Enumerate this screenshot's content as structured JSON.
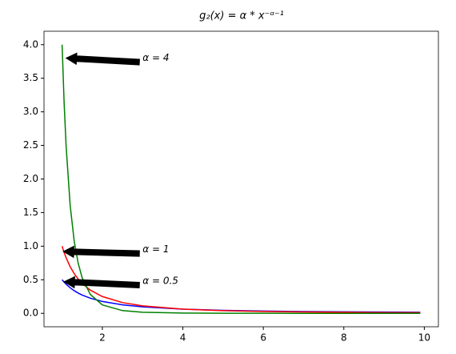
{
  "chart_data": {
    "type": "line",
    "title": "g₂(x) = α * x⁻ᵅ⁻¹",
    "x": [
      1,
      1.05,
      1.1,
      1.2,
      1.3,
      1.4,
      1.5,
      1.7,
      2,
      2.5,
      3,
      4,
      5,
      6,
      7,
      8,
      9,
      9.9
    ],
    "series": [
      {
        "color": "#0000ff",
        "values": [
          0.5,
          0.4647,
          0.4334,
          0.3804,
          0.3373,
          0.3018,
          0.2722,
          0.2256,
          0.1768,
          0.1265,
          0.0962,
          0.0625,
          0.0447,
          0.034,
          0.027,
          0.0221,
          0.0185,
          0.0161
        ]
      },
      {
        "color": "#ff0000",
        "values": [
          1,
          0.907,
          0.8264,
          0.6944,
          0.5917,
          0.5102,
          0.4444,
          0.346,
          0.25,
          0.16,
          0.1111,
          0.0625,
          0.04,
          0.0278,
          0.0204,
          0.0156,
          0.0123,
          0.0102
        ]
      },
      {
        "color": "#008000",
        "values": [
          4,
          3.1341,
          2.4837,
          1.6075,
          1.0773,
          0.7437,
          0.5267,
          0.2817,
          0.125,
          0.041,
          0.0165,
          0.0039,
          0.0013,
          0.0005,
          0.0002,
          0.0001,
          0.0001,
          0
        ]
      }
    ],
    "annotations": [
      {
        "text": "α = 4",
        "xy": [
          1.1,
          3.8
        ],
        "xytext": [
          3,
          3.8
        ]
      },
      {
        "text": "α = 1",
        "xy": [
          1.03,
          0.92
        ],
        "xytext": [
          3,
          0.95
        ]
      },
      {
        "text": "α = 0.5",
        "xy": [
          1.05,
          0.47
        ],
        "xytext": [
          3,
          0.48
        ]
      }
    ],
    "xlim": [
      0.55,
      10.35
    ],
    "ylim": [
      -0.2,
      4.2
    ],
    "xticks": [
      2,
      4,
      6,
      8,
      10
    ],
    "yticks": [
      {
        "value": 0,
        "label": "0.0"
      },
      {
        "value": 0.5,
        "label": "0.5"
      },
      {
        "value": 1,
        "label": "1.0"
      },
      {
        "value": 1.5,
        "label": "1.5"
      },
      {
        "value": 2,
        "label": "2.0"
      },
      {
        "value": 2.5,
        "label": "2.5"
      },
      {
        "value": 3,
        "label": "3.0"
      },
      {
        "value": 3.5,
        "label": "3.5"
      },
      {
        "value": 4,
        "label": "4.0"
      }
    ]
  }
}
